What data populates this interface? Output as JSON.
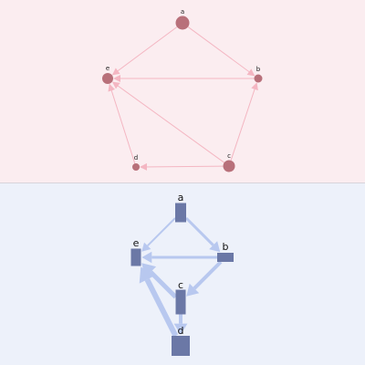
{
  "top_graph": {
    "colors": {
      "background": "#fbedf0",
      "node": "#b8707a",
      "edge": "#f4b6c2"
    },
    "nodes": [
      {
        "id": "a",
        "label": "a"
      },
      {
        "id": "b",
        "label": "b"
      },
      {
        "id": "c",
        "label": "c"
      },
      {
        "id": "d",
        "label": "d"
      },
      {
        "id": "e",
        "label": "e"
      }
    ],
    "edges": [
      {
        "from": "a",
        "to": "e"
      },
      {
        "from": "a",
        "to": "b"
      },
      {
        "from": "b",
        "to": "e"
      },
      {
        "from": "c",
        "to": "b"
      },
      {
        "from": "c",
        "to": "e"
      },
      {
        "from": "c",
        "to": "d"
      },
      {
        "from": "d",
        "to": "e"
      }
    ]
  },
  "bottom_graph": {
    "colors": {
      "background": "#edf1fa",
      "node": "#6b78a6",
      "edge": "#b8c8ef"
    },
    "nodes": [
      {
        "id": "a",
        "label": "a"
      },
      {
        "id": "b",
        "label": "b"
      },
      {
        "id": "c",
        "label": "c"
      },
      {
        "id": "d",
        "label": "d"
      },
      {
        "id": "e",
        "label": "e"
      }
    ],
    "edges": [
      {
        "from": "a",
        "to": "e"
      },
      {
        "from": "a",
        "to": "b"
      },
      {
        "from": "b",
        "to": "e"
      },
      {
        "from": "b",
        "to": "c"
      },
      {
        "from": "c",
        "to": "d"
      },
      {
        "from": "c",
        "to": "e"
      },
      {
        "from": "d",
        "to": "e"
      }
    ]
  }
}
